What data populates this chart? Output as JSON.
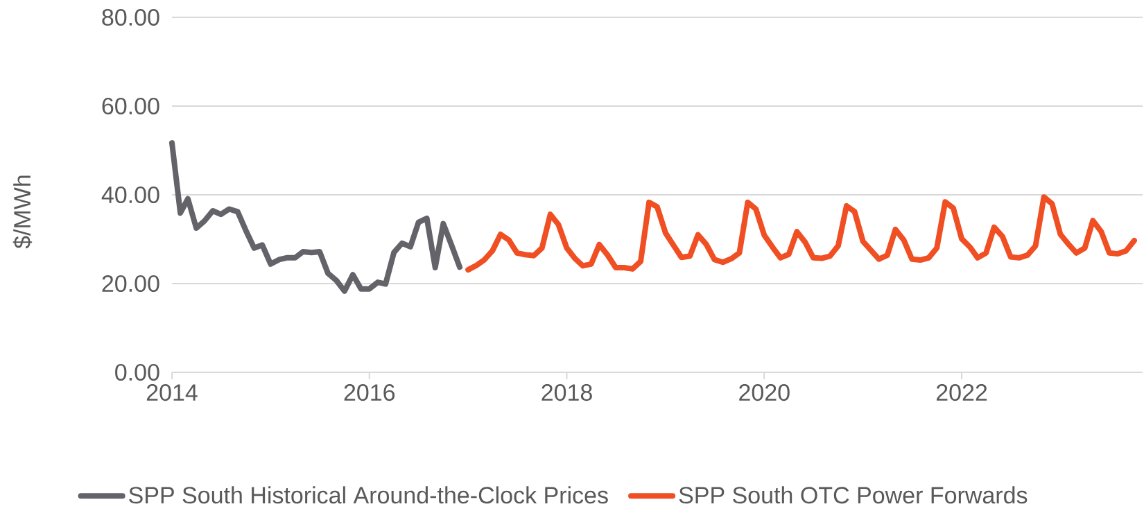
{
  "chart_data": {
    "type": "line",
    "ylabel": "$/MWh",
    "xlim": [
      "2014",
      "2023-11-01"
    ],
    "xticks": [
      "2014",
      "2016",
      "2018",
      "2020",
      "2022"
    ],
    "ylim": [
      0,
      80
    ],
    "yticks": [
      {
        "value": 0,
        "label": "0.00"
      },
      {
        "value": 20,
        "label": "20.00"
      },
      {
        "value": 40,
        "label": "40.00"
      },
      {
        "value": 60,
        "label": "60.00"
      },
      {
        "value": 80,
        "label": "80.00"
      }
    ],
    "grid": "y",
    "legend": "bottom",
    "series": [
      {
        "name": "SPP South Historical Around-the-Clock Prices",
        "color": "#636369",
        "x": [
          "2014-01",
          "2014-02",
          "2014-03",
          "2014-04",
          "2014-05",
          "2014-06",
          "2014-07",
          "2014-08",
          "2014-09",
          "2014-10",
          "2014-11",
          "2014-12",
          "2015-01",
          "2015-02",
          "2015-03",
          "2015-04",
          "2015-05",
          "2015-06",
          "2015-07",
          "2015-08",
          "2015-09",
          "2015-10",
          "2015-11",
          "2015-12",
          "2016-01",
          "2016-02",
          "2016-03",
          "2016-04",
          "2016-05",
          "2016-06",
          "2016-07",
          "2016-08",
          "2016-09",
          "2016-10",
          "2016-11",
          "2016-12"
        ],
        "values": [
          51.7,
          35.9,
          39.1,
          32.5,
          34.1,
          36.4,
          35.6,
          36.8,
          36.2,
          32.0,
          28.0,
          28.7,
          24.4,
          25.4,
          25.8,
          25.8,
          27.2,
          27.0,
          27.2,
          22.3,
          20.7,
          18.3,
          22.0,
          18.8,
          18.8,
          20.3,
          19.9,
          27.0,
          29.1,
          28.3,
          33.8,
          34.7,
          23.6,
          33.5,
          28.6,
          23.7
        ]
      },
      {
        "name": "SPP South OTC Power Forwards",
        "color": "#f04e23",
        "x": [
          "2017-01",
          "2017-02",
          "2017-03",
          "2017-04",
          "2017-05",
          "2017-06",
          "2017-07",
          "2017-08",
          "2017-09",
          "2017-10",
          "2017-11",
          "2017-12",
          "2018-01",
          "2018-02",
          "2018-03",
          "2018-04",
          "2018-05",
          "2018-06",
          "2018-07",
          "2018-08",
          "2018-09",
          "2018-10",
          "2018-11",
          "2018-12",
          "2019-01",
          "2019-02",
          "2019-03",
          "2019-04",
          "2019-05",
          "2019-06",
          "2019-07",
          "2019-08",
          "2019-09",
          "2019-10",
          "2019-11",
          "2019-12",
          "2020-01",
          "2020-02",
          "2020-03",
          "2020-04",
          "2020-05",
          "2020-06",
          "2020-07",
          "2020-08",
          "2020-09",
          "2020-10",
          "2020-11",
          "2020-12",
          "2021-01",
          "2021-02",
          "2021-03",
          "2021-04",
          "2021-05",
          "2021-06",
          "2021-07",
          "2021-08",
          "2021-09",
          "2021-10",
          "2021-11",
          "2021-12",
          "2022-01",
          "2022-02",
          "2022-03",
          "2022-04",
          "2022-05",
          "2022-06",
          "2022-07",
          "2022-08",
          "2022-09",
          "2022-10",
          "2022-11",
          "2022-12",
          "2023-01",
          "2023-02",
          "2023-03",
          "2023-04",
          "2023-05",
          "2023-06",
          "2023-07",
          "2023-08",
          "2023-09",
          "2023-10"
        ],
        "values": [
          23.1,
          24.1,
          25.3,
          27.4,
          31.1,
          29.8,
          26.9,
          26.5,
          26.3,
          28.0,
          35.6,
          33.3,
          28.0,
          25.6,
          24.0,
          24.4,
          28.8,
          26.4,
          23.6,
          23.6,
          23.3,
          25.0,
          38.3,
          37.3,
          31.4,
          28.5,
          25.9,
          26.2,
          31.0,
          28.8,
          25.4,
          24.8,
          25.6,
          26.9,
          38.3,
          36.8,
          30.9,
          28.2,
          25.8,
          26.6,
          31.7,
          29.3,
          25.8,
          25.7,
          26.2,
          28.5,
          37.5,
          36.2,
          29.5,
          27.4,
          25.5,
          26.4,
          32.2,
          29.8,
          25.5,
          25.3,
          25.8,
          28.0,
          38.4,
          37.0,
          30.1,
          28.2,
          25.8,
          26.9,
          32.7,
          30.6,
          26.0,
          25.8,
          26.4,
          28.5,
          39.5,
          38.0,
          31.1,
          28.8,
          26.9,
          28.0,
          34.2,
          31.7,
          26.9,
          26.7,
          27.4,
          29.7
        ]
      }
    ]
  }
}
